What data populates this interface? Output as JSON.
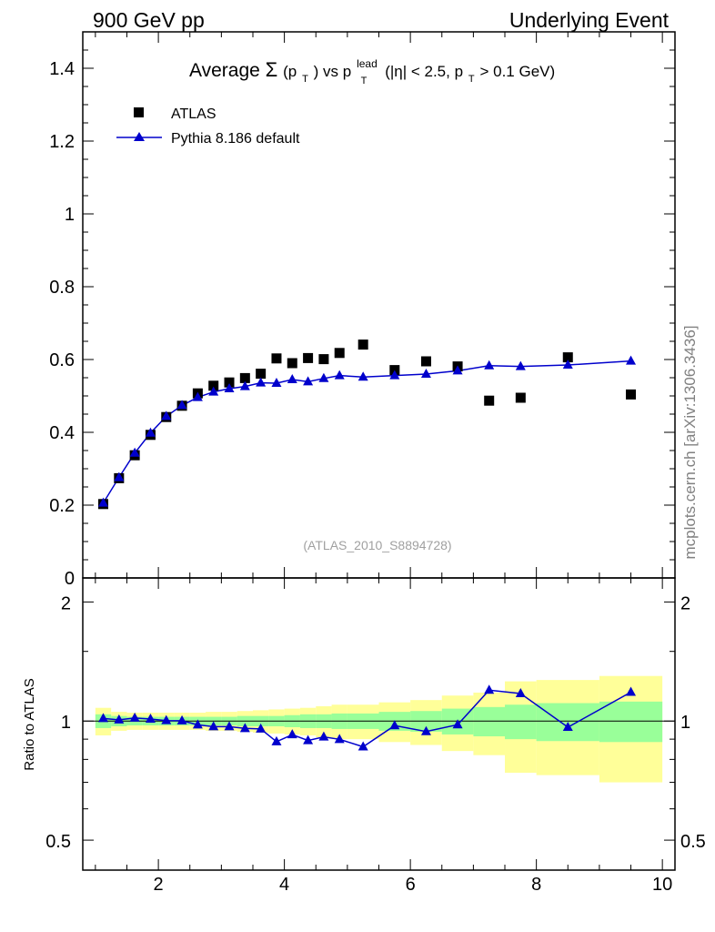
{
  "header": {
    "left": "900 GeV pp",
    "right": "Underlying Event"
  },
  "side_label": "mcplots.cern.ch [arXiv:1306.3436]",
  "chart_data": [
    {
      "type": "scatter",
      "title_parts": {
        "prefix": "Average ",
        "sigma": "Σ",
        "open": "(p",
        "sub_t": "T",
        "close": ") vs p",
        "sup_lead": "lead",
        "sub_t2": "T",
        "cond1": " (|η| < 2.5, p",
        "sub_t3": "T",
        "cond2": " > 0.1 GeV)"
      },
      "watermark": "(ATLAS_2010_S8894728)",
      "xlim": [
        0.8,
        10.2
      ],
      "ylim": [
        0,
        1.5
      ],
      "y_ticks": [
        0,
        0.2,
        0.4,
        0.6,
        0.8,
        1,
        1.2,
        1.4
      ],
      "y_tick_labels": [
        "0",
        "0.2",
        "0.4",
        "0.6",
        "0.8",
        "1",
        "1.2",
        "1.4"
      ],
      "legend_placement": "top-left",
      "series": [
        {
          "name": "ATLAS",
          "marker": "square",
          "color": "#000000",
          "x": [
            1.125,
            1.375,
            1.625,
            1.875,
            2.125,
            2.375,
            2.625,
            2.875,
            3.125,
            3.375,
            3.625,
            3.875,
            4.125,
            4.375,
            4.625,
            4.875,
            5.25,
            5.75,
            6.25,
            6.75,
            7.25,
            7.75,
            8.5,
            9.5
          ],
          "y": [
            0.203,
            0.274,
            0.337,
            0.393,
            0.442,
            0.473,
            0.507,
            0.528,
            0.537,
            0.549,
            0.561,
            0.603,
            0.59,
            0.604,
            0.601,
            0.618,
            0.641,
            0.571,
            0.595,
            0.581,
            0.487,
            0.495,
            0.606,
            0.504
          ]
        },
        {
          "name": "Pythia 8.186 default",
          "marker": "triangle",
          "color": "#0000cc",
          "x": [
            1.125,
            1.375,
            1.625,
            1.875,
            2.125,
            2.375,
            2.625,
            2.875,
            3.125,
            3.375,
            3.625,
            3.875,
            4.125,
            4.375,
            4.625,
            4.875,
            5.25,
            5.75,
            6.25,
            6.75,
            7.25,
            7.75,
            8.5,
            9.5
          ],
          "y": [
            0.206,
            0.276,
            0.343,
            0.398,
            0.444,
            0.474,
            0.496,
            0.511,
            0.52,
            0.526,
            0.536,
            0.535,
            0.545,
            0.539,
            0.548,
            0.556,
            0.552,
            0.556,
            0.56,
            0.569,
            0.583,
            0.581,
            0.585,
            0.596
          ]
        }
      ]
    },
    {
      "type": "line",
      "ylabel": "Ratio to ATLAS",
      "xlim": [
        0.8,
        10.2
      ],
      "ylim": [
        0.42,
        2.3
      ],
      "y_scale": "log",
      "x_ticks": [
        2,
        4,
        6,
        8,
        10
      ],
      "x_tick_labels": [
        "2",
        "4",
        "6",
        "8",
        "10"
      ],
      "y_ticks": [
        0.5,
        1,
        2
      ],
      "y_tick_labels": [
        "0.5",
        "1",
        "2"
      ],
      "reference_line": 1,
      "bands": {
        "bin_edges": [
          1.0,
          1.25,
          1.5,
          1.75,
          2.0,
          2.25,
          2.5,
          2.75,
          3.0,
          3.25,
          3.5,
          3.75,
          4.0,
          4.25,
          4.5,
          4.75,
          5.0,
          5.5,
          6.0,
          6.5,
          7.0,
          7.5,
          8.0,
          9.0,
          10.0
        ],
        "inner_color": "#99ff99",
        "outer_color": "#ffff99",
        "inner_low": [
          0.96,
          0.97,
          0.975,
          0.975,
          0.975,
          0.975,
          0.975,
          0.975,
          0.975,
          0.97,
          0.97,
          0.97,
          0.965,
          0.96,
          0.96,
          0.955,
          0.955,
          0.945,
          0.94,
          0.925,
          0.915,
          0.9,
          0.89,
          0.885
        ],
        "inner_high": [
          1.04,
          1.03,
          1.025,
          1.025,
          1.025,
          1.025,
          1.025,
          1.025,
          1.025,
          1.03,
          1.03,
          1.03,
          1.035,
          1.04,
          1.04,
          1.045,
          1.045,
          1.055,
          1.06,
          1.075,
          1.085,
          1.1,
          1.11,
          1.12
        ],
        "outer_low": [
          0.92,
          0.945,
          0.95,
          0.95,
          0.95,
          0.95,
          0.95,
          0.945,
          0.945,
          0.94,
          0.935,
          0.93,
          0.925,
          0.92,
          0.91,
          0.9,
          0.9,
          0.885,
          0.87,
          0.84,
          0.82,
          0.74,
          0.73,
          0.7
        ],
        "outer_high": [
          1.08,
          1.055,
          1.05,
          1.05,
          1.05,
          1.05,
          1.05,
          1.055,
          1.055,
          1.06,
          1.065,
          1.07,
          1.075,
          1.08,
          1.09,
          1.1,
          1.1,
          1.115,
          1.13,
          1.16,
          1.18,
          1.26,
          1.27,
          1.3
        ]
      },
      "series": [
        {
          "name": "Pythia 8.186 default",
          "color": "#0000cc",
          "x": [
            1.125,
            1.375,
            1.625,
            1.875,
            2.125,
            2.375,
            2.625,
            2.875,
            3.125,
            3.375,
            3.625,
            3.875,
            4.125,
            4.375,
            4.625,
            4.875,
            5.25,
            5.75,
            6.25,
            6.75,
            7.25,
            7.75,
            8.5,
            9.5
          ],
          "y": [
            1.015,
            1.007,
            1.018,
            1.012,
            1.003,
            1.002,
            0.978,
            0.968,
            0.968,
            0.958,
            0.955,
            0.887,
            0.924,
            0.893,
            0.912,
            0.899,
            0.861,
            0.974,
            0.941,
            0.979,
            1.197,
            1.174,
            0.965,
            1.183
          ]
        }
      ]
    }
  ]
}
